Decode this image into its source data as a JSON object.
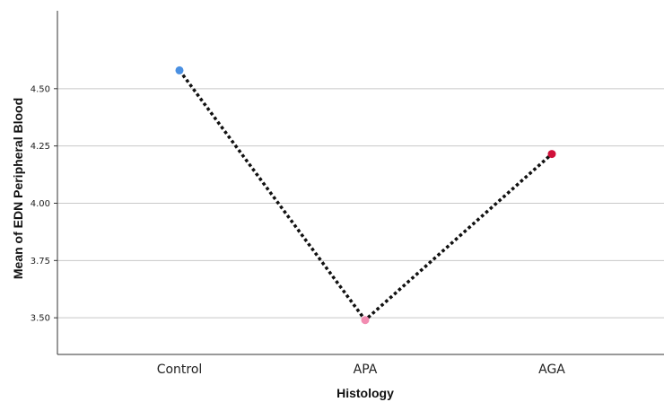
{
  "chart_data": {
    "type": "line",
    "title": "",
    "xlabel": "Histology",
    "ylabel": "Mean of EDN Peripheral Blood",
    "categories": [
      "Control",
      "APA",
      "AGA"
    ],
    "values": [
      4.58,
      3.49,
      4.215
    ],
    "point_colors": [
      "#4a90e2",
      "#f28cb1",
      "#d0103a"
    ],
    "line_color": "#111111",
    "line_style": "dotted",
    "yticks": [
      3.5,
      3.75,
      4.0,
      4.25,
      4.5
    ],
    "ytick_labels": [
      "3.50",
      "3.75",
      "4.00",
      "4.25",
      "4.50"
    ],
    "ylim": [
      3.34,
      4.84
    ],
    "grid": "horizontal",
    "legend": "none"
  }
}
